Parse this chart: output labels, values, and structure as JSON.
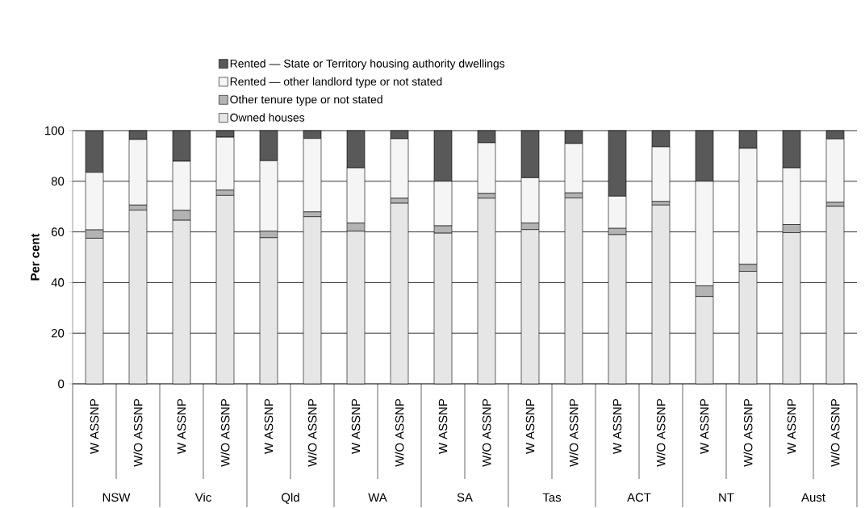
{
  "chart_data": {
    "type": "bar",
    "stacked": true,
    "ylabel": "Per cent",
    "categories": [
      "W ASSNP",
      "W/O ASSNP",
      "W ASSNP",
      "W/O ASSNP",
      "W ASSNP",
      "W/O ASSNP",
      "W ASSNP",
      "W/O ASSNP",
      "W ASSNP",
      "W/O ASSNP",
      "W ASSNP",
      "W/O ASSNP",
      "W ASSNP",
      "W/O ASSNP",
      "W ASSNP",
      "W/O ASSNP",
      "W ASSNP",
      "W/O ASSNP"
    ],
    "series": [
      {
        "name": "Owned houses",
        "color": "#e6e6e6",
        "values": [
          57.5,
          68.6,
          64.6,
          74.4,
          57.7,
          66.0,
          60.3,
          71.3,
          59.5,
          73.3,
          60.9,
          73.4,
          58.9,
          70.6,
          34.5,
          44.4,
          59.7,
          70.1
        ]
      },
      {
        "name": "Other tenure type or not stated",
        "color": "#b3b3b3",
        "values": [
          3.3,
          2.0,
          3.9,
          2.1,
          2.6,
          1.9,
          3.2,
          2.0,
          2.9,
          1.9,
          2.6,
          2.0,
          2.5,
          1.4,
          4.2,
          2.8,
          3.2,
          1.6
        ]
      },
      {
        "name": "Rented — other landlord type or not stated",
        "color": "#f5f5f5",
        "values": [
          22.7,
          25.9,
          19.4,
          20.9,
          27.8,
          29.0,
          21.8,
          23.5,
          17.6,
          20.0,
          17.9,
          19.5,
          12.7,
          21.6,
          41.3,
          45.8,
          22.4,
          25.0
        ]
      },
      {
        "name": "Rented — State or Territory housing authority dwellings",
        "color": "#595959",
        "values": [
          16.4,
          3.5,
          12.1,
          2.6,
          11.9,
          3.1,
          14.7,
          3.2,
          20.0,
          4.8,
          18.6,
          5.1,
          25.9,
          6.4,
          20.0,
          7.0,
          14.7,
          3.3
        ]
      }
    ],
    "annotations": [
      "NSW",
      "Vic",
      "Qld",
      "WA",
      "SA",
      "Tas",
      "ACT",
      "NT",
      "Aust"
    ],
    "ylim": [
      0,
      100
    ],
    "yticks": [
      0,
      20,
      40,
      60,
      80,
      100
    ],
    "grid": "y",
    "legend": "top"
  }
}
